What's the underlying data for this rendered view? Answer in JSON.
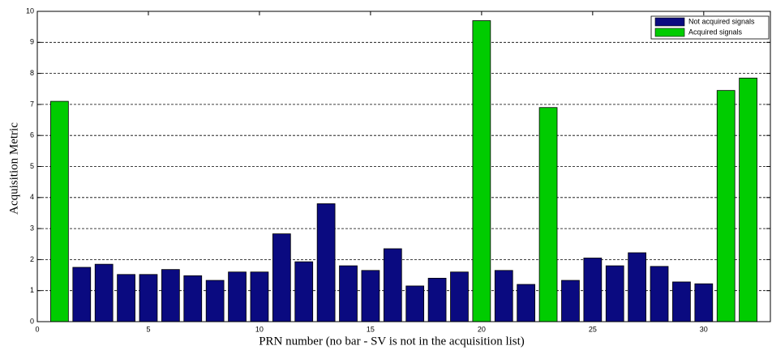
{
  "chart_data": {
    "type": "bar",
    "x_label": "PRN number (no bar - SV is not in the acquisition list)",
    "y_label": "Acquisition Metric",
    "x": [
      1,
      2,
      3,
      4,
      5,
      6,
      7,
      8,
      9,
      10,
      11,
      12,
      13,
      14,
      15,
      16,
      17,
      18,
      19,
      20,
      21,
      22,
      23,
      24,
      25,
      26,
      27,
      28,
      29,
      30,
      31,
      32
    ],
    "series": [
      {
        "name": "Not acquired signals",
        "color": "#0a0a80",
        "values": [
          null,
          1.75,
          1.85,
          1.52,
          1.52,
          1.68,
          1.48,
          1.33,
          1.6,
          1.6,
          2.83,
          1.93,
          3.8,
          1.8,
          1.65,
          2.35,
          1.15,
          1.4,
          1.6,
          null,
          1.65,
          1.2,
          null,
          1.33,
          2.05,
          1.8,
          2.22,
          1.78,
          1.28,
          1.22,
          null,
          null
        ]
      },
      {
        "name": "Acquired signals",
        "color": "#00cc00",
        "values": [
          7.1,
          null,
          null,
          null,
          null,
          null,
          null,
          null,
          null,
          null,
          null,
          null,
          null,
          null,
          null,
          null,
          null,
          null,
          null,
          9.7,
          null,
          null,
          6.9,
          null,
          null,
          null,
          null,
          null,
          null,
          null,
          7.45,
          7.85
        ]
      }
    ],
    "xlim": [
      0,
      33
    ],
    "xticks": [
      0,
      5,
      10,
      15,
      20,
      25,
      30
    ],
    "ylim": [
      0,
      10
    ],
    "yticks": [
      0,
      1,
      2,
      3,
      4,
      5,
      6,
      7,
      8,
      9,
      10
    ],
    "grid": "y",
    "legend": "upper right"
  }
}
